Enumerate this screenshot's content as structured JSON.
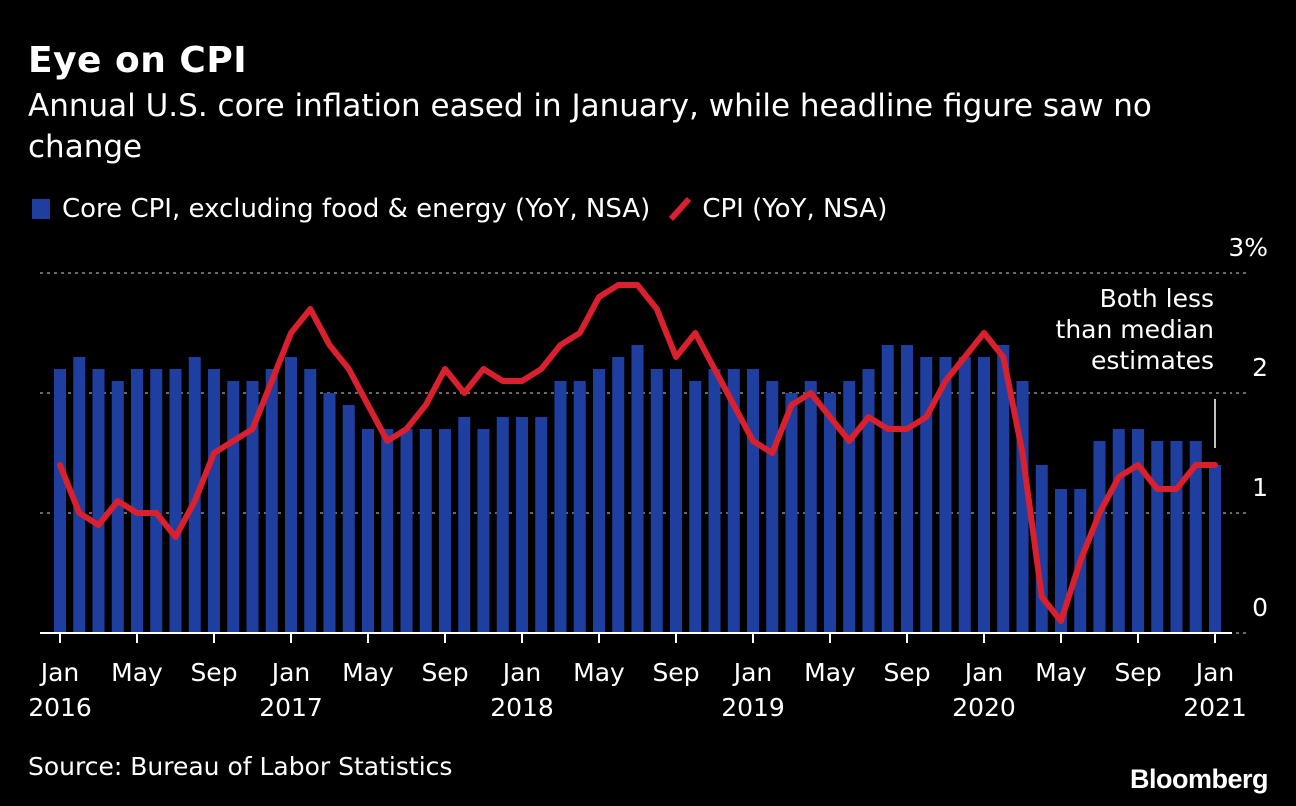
{
  "header": {
    "title": "Eye on CPI",
    "subtitle": "Annual U.S. core inflation eased in January, while headline figure saw no change"
  },
  "legend": {
    "core_label": "Core CPI, excluding food & energy (YoY, NSA)",
    "cpi_label": "CPI (YoY, NSA)"
  },
  "footer": {
    "source": "Source: Bureau of Labor Statistics",
    "brand": "Bloomberg"
  },
  "colors": {
    "background": "#000000",
    "bar": "#1f3fa0",
    "line": "#d9202e",
    "grid": "#8a8a8a"
  },
  "chart_data": {
    "type": "bar",
    "title": "Eye on CPI",
    "subtitle": "Annual U.S. core inflation eased in January, while headline figure saw no change",
    "ylim": [
      0,
      3
    ],
    "yticks": [
      0,
      1,
      2,
      3
    ],
    "ytick_labels": [
      "0",
      "1",
      "2",
      "3%"
    ],
    "xtick_labels": [
      {
        "month": "Jan",
        "year": "2016"
      },
      {
        "month": "May",
        "year": ""
      },
      {
        "month": "Sep",
        "year": ""
      },
      {
        "month": "Jan",
        "year": "2017"
      },
      {
        "month": "May",
        "year": ""
      },
      {
        "month": "Sep",
        "year": ""
      },
      {
        "month": "Jan",
        "year": "2018"
      },
      {
        "month": "May",
        "year": ""
      },
      {
        "month": "Sep",
        "year": ""
      },
      {
        "month": "Jan",
        "year": "2019"
      },
      {
        "month": "May",
        "year": ""
      },
      {
        "month": "Sep",
        "year": ""
      },
      {
        "month": "Jan",
        "year": "2020"
      },
      {
        "month": "May",
        "year": ""
      },
      {
        "month": "Sep",
        "year": ""
      },
      {
        "month": "Jan",
        "year": "2021"
      }
    ],
    "categories": [
      "2016-01",
      "2016-02",
      "2016-03",
      "2016-04",
      "2016-05",
      "2016-06",
      "2016-07",
      "2016-08",
      "2016-09",
      "2016-10",
      "2016-11",
      "2016-12",
      "2017-01",
      "2017-02",
      "2017-03",
      "2017-04",
      "2017-05",
      "2017-06",
      "2017-07",
      "2017-08",
      "2017-09",
      "2017-10",
      "2017-11",
      "2017-12",
      "2018-01",
      "2018-02",
      "2018-03",
      "2018-04",
      "2018-05",
      "2018-06",
      "2018-07",
      "2018-08",
      "2018-09",
      "2018-10",
      "2018-11",
      "2018-12",
      "2019-01",
      "2019-02",
      "2019-03",
      "2019-04",
      "2019-05",
      "2019-06",
      "2019-07",
      "2019-08",
      "2019-09",
      "2019-10",
      "2019-11",
      "2019-12",
      "2020-01",
      "2020-02",
      "2020-03",
      "2020-04",
      "2020-05",
      "2020-06",
      "2020-07",
      "2020-08",
      "2020-09",
      "2020-10",
      "2020-11",
      "2020-12",
      "2021-01"
    ],
    "series": [
      {
        "name": "Core CPI, excluding food & energy (YoY, NSA)",
        "type": "bar",
        "values": [
          2.2,
          2.3,
          2.2,
          2.1,
          2.2,
          2.2,
          2.2,
          2.3,
          2.2,
          2.1,
          2.1,
          2.2,
          2.3,
          2.2,
          2.0,
          1.9,
          1.7,
          1.7,
          1.7,
          1.7,
          1.7,
          1.8,
          1.7,
          1.8,
          1.8,
          1.8,
          2.1,
          2.1,
          2.2,
          2.3,
          2.4,
          2.2,
          2.2,
          2.1,
          2.2,
          2.2,
          2.2,
          2.1,
          2.0,
          2.1,
          2.0,
          2.1,
          2.2,
          2.4,
          2.4,
          2.3,
          2.3,
          2.3,
          2.3,
          2.4,
          2.1,
          1.4,
          1.2,
          1.2,
          1.6,
          1.7,
          1.7,
          1.6,
          1.6,
          1.6,
          1.4
        ]
      },
      {
        "name": "CPI (YoY, NSA)",
        "type": "line",
        "values": [
          1.4,
          1.0,
          0.9,
          1.1,
          1.0,
          1.0,
          0.8,
          1.1,
          1.5,
          1.6,
          1.7,
          2.1,
          2.5,
          2.7,
          2.4,
          2.2,
          1.9,
          1.6,
          1.7,
          1.9,
          2.2,
          2.0,
          2.2,
          2.1,
          2.1,
          2.2,
          2.4,
          2.5,
          2.8,
          2.9,
          2.9,
          2.7,
          2.3,
          2.5,
          2.2,
          1.9,
          1.6,
          1.5,
          1.9,
          2.0,
          1.8,
          1.6,
          1.8,
          1.7,
          1.7,
          1.8,
          2.1,
          2.3,
          2.5,
          2.3,
          1.5,
          0.3,
          0.1,
          0.6,
          1.0,
          1.3,
          1.4,
          1.2,
          1.2,
          1.4,
          1.4
        ]
      }
    ],
    "annotation": {
      "text_lines": [
        "Both less",
        "than median",
        "estimates"
      ]
    },
    "grid": true
  }
}
